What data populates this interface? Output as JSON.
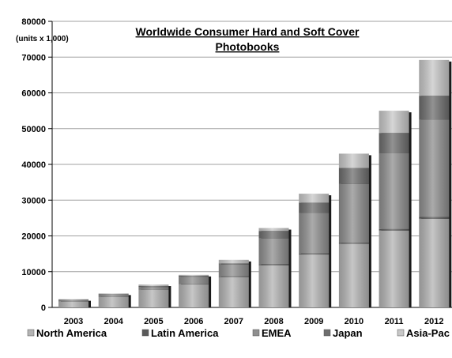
{
  "chart_data": {
    "type": "bar",
    "stacked": true,
    "title_lines": [
      "Worldwide Consumer Hard and Soft Cover",
      "Photobooks"
    ],
    "unit_label": "(units x 1,000)",
    "ylim": [
      0,
      80000
    ],
    "yticks": [
      0,
      10000,
      20000,
      30000,
      40000,
      50000,
      60000,
      70000,
      80000
    ],
    "grid": true,
    "legend_position": "bottom",
    "categories": [
      "2003",
      "2004",
      "2005",
      "2006",
      "2007",
      "2008",
      "2009",
      "2010",
      "2011",
      "2012"
    ],
    "series": [
      {
        "name": "North America",
        "color": "#b4b4b4",
        "values": [
          1600,
          3000,
          5000,
          6500,
          8500,
          11800,
          14800,
          17800,
          21500,
          24800
        ]
      },
      {
        "name": "Latin America",
        "color": "#5a5a5a",
        "values": [
          0,
          100,
          100,
          100,
          200,
          300,
          300,
          300,
          400,
          500
        ]
      },
      {
        "name": "EMEA",
        "color": "#8f8f8f",
        "values": [
          500,
          500,
          600,
          2000,
          3300,
          7200,
          11300,
          16400,
          21200,
          27200
        ]
      },
      {
        "name": "Japan",
        "color": "#6e6e6e",
        "values": [
          100,
          150,
          300,
          300,
          300,
          2100,
          2900,
          4500,
          5700,
          6700
        ]
      },
      {
        "name": "Asia-Pac",
        "color": "#c8c8c8",
        "values": [
          100,
          150,
          400,
          200,
          1000,
          800,
          2500,
          4000,
          6200,
          10000
        ]
      }
    ]
  }
}
